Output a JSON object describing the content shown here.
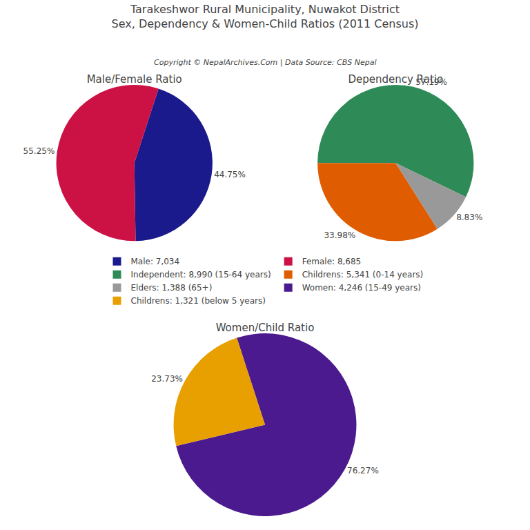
{
  "title": "Tarakeshwor Rural Municipality, Nuwakot District",
  "subtitle": "Sex, Dependency & Women-Child Ratios (2011 Census)",
  "annotations": [
    "Copyright © NepalArchives.Com | Data Source: CBS Nepal"
  ],
  "legend": "center",
  "chart_data": [
    {
      "type": "pie",
      "title": "Male/Female Ratio",
      "categories": [
        "Male: 7,034",
        "Female: 8,685"
      ],
      "values": [
        44.75,
        55.25
      ],
      "value_labels": [
        "44.75%",
        "55.25%"
      ],
      "colors": [
        "#1a1a8c",
        "#cc1144"
      ],
      "data_labels": true
    },
    {
      "type": "pie",
      "title": "Dependency Ratio",
      "categories": [
        "Independent: 8,990 (15-64 years)",
        "Childrens: 5,341 (0-14 years)",
        "Elders: 1,388 (65+)"
      ],
      "values": [
        57.19,
        33.98,
        8.83
      ],
      "value_labels": [
        "57.19%",
        "33.98%",
        "8.83%"
      ],
      "colors": [
        "#2e8b57",
        "#e05c00",
        "#999999"
      ],
      "data_labels": true
    },
    {
      "type": "pie",
      "title": "Women/Child Ratio",
      "categories": [
        "Women: 4,246 (15-49 years)",
        "Childrens: 1,321 (below 5 years)"
      ],
      "values": [
        76.27,
        23.73
      ],
      "value_labels": [
        "76.27%",
        "23.73%"
      ],
      "colors": [
        "#4b1a8e",
        "#e8a000"
      ],
      "data_labels": true
    }
  ]
}
